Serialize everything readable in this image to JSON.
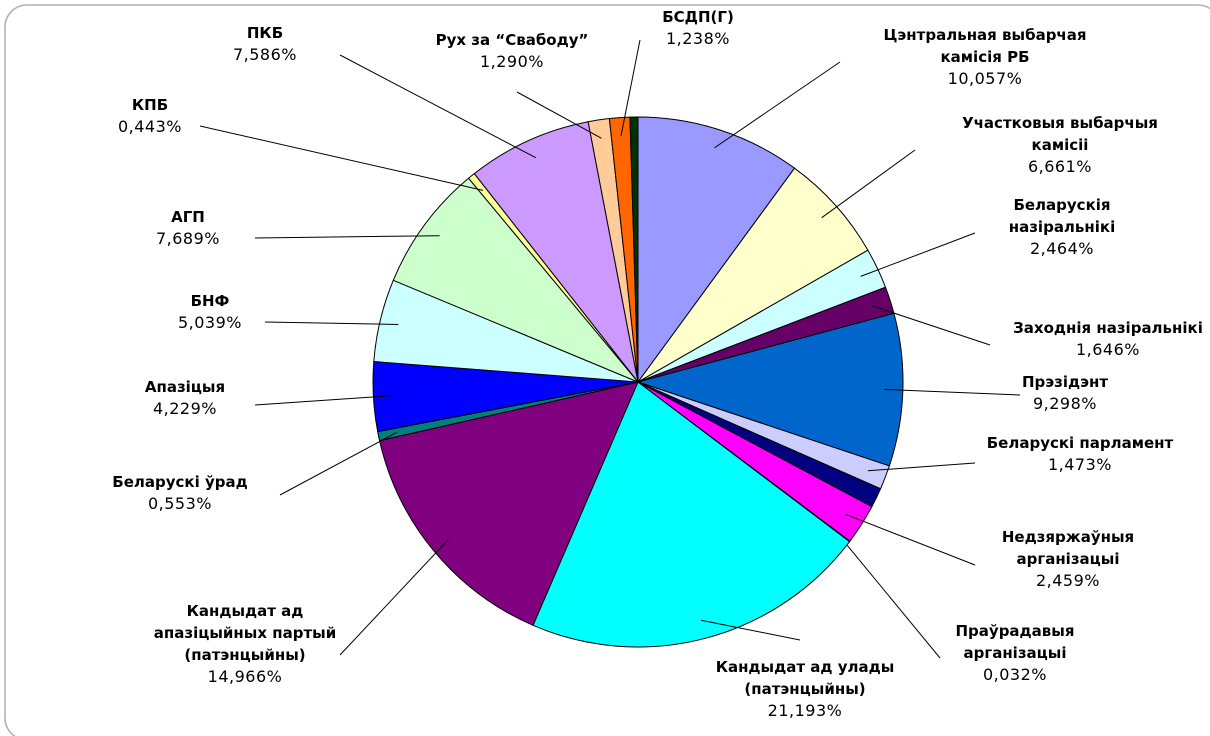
{
  "chart_data": {
    "type": "pie",
    "categories": [
      "Цэнтральная выбарчая\nкамісія РБ",
      "Участковыя выбарчыя\nкамісіі",
      "Беларускія\nназіральнікі",
      "Заходнія назіральнікі",
      "Прэзідэнт",
      "Беларускі парламент",
      null,
      "Недзяржаўныя\nарганізацыі",
      "Праўрадавыя\nарганізацыі",
      "Кандыдат ад улады\n(патэнцыйны)",
      "Кандыдат ад\nапазіцыйных партый\n(патэнцыйны)",
      "Беларускі ўрад",
      "Апазіцыя",
      "БНФ",
      "АГП",
      "КПБ",
      "ПКБ",
      "Рух за “Свабоду”",
      "БСДП(Г)",
      null
    ],
    "values": [
      10.057,
      6.661,
      2.464,
      1.646,
      9.298,
      1.473,
      1.2,
      2.459,
      0.032,
      21.193,
      14.966,
      0.553,
      4.229,
      5.039,
      7.689,
      0.443,
      7.586,
      1.29,
      1.238,
      0.484
    ],
    "value_labels": [
      "10,057%",
      "6,661%",
      "2,464%",
      "1,646%",
      "9,298%",
      "1,473%",
      null,
      "2,459%",
      "0,032%",
      "21,193%",
      "14,966%",
      "0,553%",
      "4,229%",
      "5,039%",
      "7,689%",
      "0,443%",
      "7,586%",
      "1,290%",
      "1,238%",
      null
    ],
    "colors": [
      "#9999ff",
      "#ffffcc",
      "#ccffff",
      "#660066",
      "#0066cc",
      "#ccccff",
      "#000080",
      "#ff00ff",
      "#800080",
      "#00ffff",
      "#800080",
      "#008080",
      "#0000ff",
      "#ccffff",
      "#ccffcc",
      "#ffff99",
      "#cc99ff",
      "#ffcc99",
      "#ff6600",
      "#003300"
    ]
  }
}
